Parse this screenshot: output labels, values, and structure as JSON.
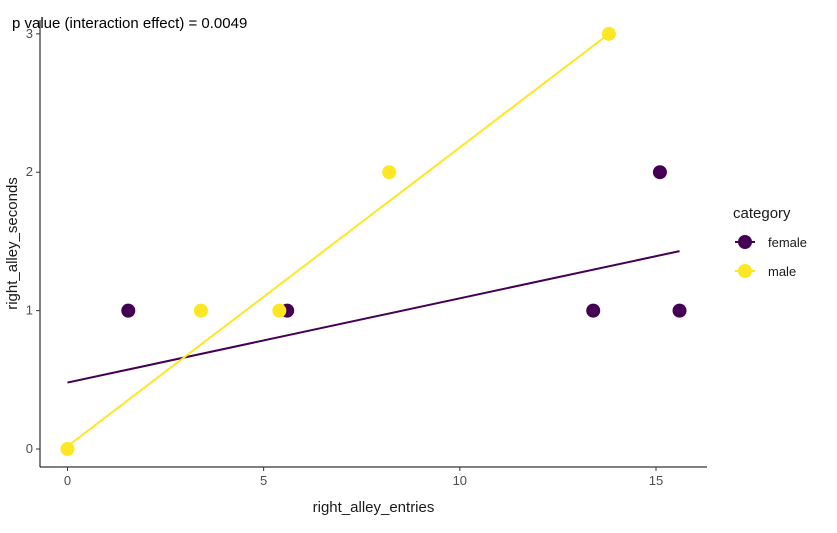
{
  "chart_data": {
    "type": "scatter",
    "annotation": "p value (interaction effect) =  0.0049",
    "xlabel": "right_alley_entries",
    "ylabel": "right_alley_seconds",
    "xlim": [
      -0.7,
      16.3
    ],
    "ylim": [
      -0.13,
      3.1
    ],
    "xticks": [
      0,
      5,
      10,
      15
    ],
    "yticks": [
      0,
      1,
      2,
      3
    ],
    "grid": false,
    "legend": {
      "title": "category",
      "position": "right",
      "entries": [
        "female",
        "male"
      ]
    },
    "series": [
      {
        "name": "female",
        "color": "#440154",
        "points": [
          [
            1.55,
            1
          ],
          [
            5.6,
            1
          ],
          [
            13.4,
            1
          ],
          [
            15.1,
            2
          ],
          [
            15.6,
            1
          ]
        ],
        "fit_line": {
          "x": [
            0,
            15.6
          ],
          "y": [
            0.48,
            1.43
          ]
        }
      },
      {
        "name": "male",
        "color": "#FDE725",
        "points": [
          [
            0,
            0
          ],
          [
            3.4,
            1
          ],
          [
            5.4,
            1
          ],
          [
            8.2,
            2
          ],
          [
            13.8,
            3
          ]
        ],
        "fit_line": {
          "x": [
            0,
            13.8
          ],
          "y": [
            0.02,
            3.0
          ]
        }
      }
    ]
  }
}
